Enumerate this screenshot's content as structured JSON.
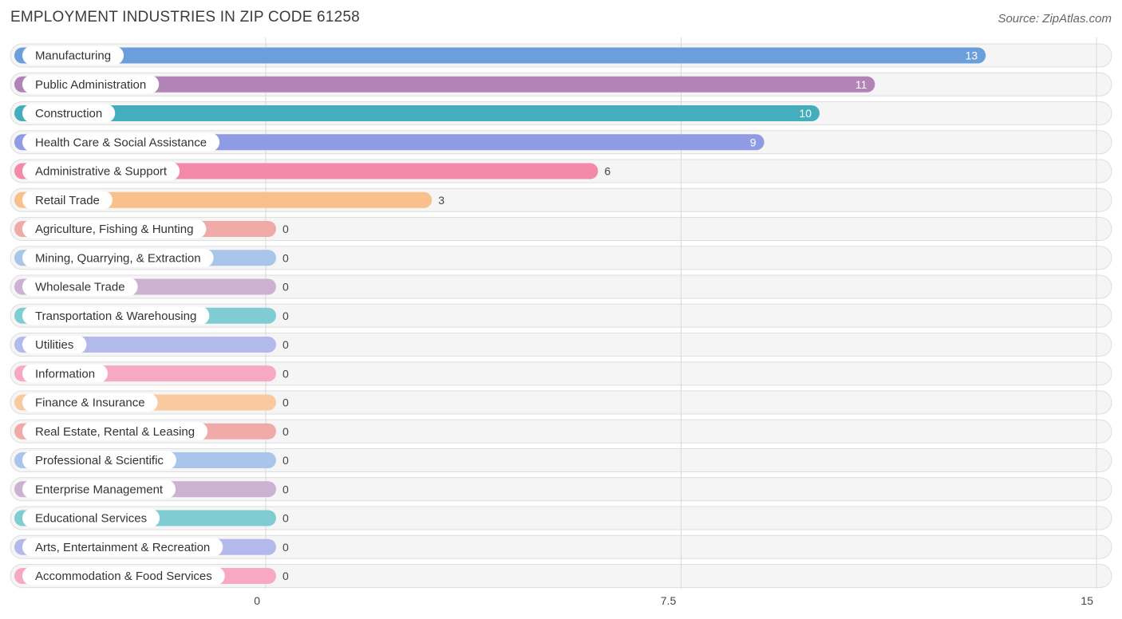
{
  "header": {
    "title": "EMPLOYMENT INDUSTRIES IN ZIP CODE 61258",
    "source": "Source: ZipAtlas.com"
  },
  "chart_data": {
    "type": "bar",
    "orientation": "horizontal",
    "title": "EMPLOYMENT INDUSTRIES IN ZIP CODE 61258",
    "xlabel": "",
    "ylabel": "",
    "xlim": [
      0,
      15
    ],
    "ticks": [
      "0",
      "7.5",
      "15"
    ],
    "tick_values": [
      0,
      7.5,
      15
    ],
    "grid": true,
    "categories": [
      "Manufacturing",
      "Public Administration",
      "Construction",
      "Health Care & Social Assistance",
      "Administrative & Support",
      "Retail Trade",
      "Agriculture, Fishing & Hunting",
      "Mining, Quarrying, & Extraction",
      "Wholesale Trade",
      "Transportation & Warehousing",
      "Utilities",
      "Information",
      "Finance & Insurance",
      "Real Estate, Rental & Leasing",
      "Professional & Scientific",
      "Enterprise Management",
      "Educational Services",
      "Arts, Entertainment & Recreation",
      "Accommodation & Food Services"
    ],
    "values": [
      13,
      11,
      10,
      9,
      6,
      3,
      0,
      0,
      0,
      0,
      0,
      0,
      0,
      0,
      0,
      0,
      0,
      0,
      0
    ],
    "colors": [
      "#6a9fdc",
      "#b283b6",
      "#44aebc",
      "#8f9be2",
      "#f48aaa",
      "#f9c08c",
      "#f0aaa8",
      "#a9c6ea",
      "#cdb1d2",
      "#7fcdd3",
      "#b4b9ec",
      "#f7a8c2",
      "#f9c99f",
      "#f0aaa8",
      "#a9c6ea",
      "#cdb1d2",
      "#7fcdd3",
      "#b4b9ec",
      "#f7a8c2"
    ]
  }
}
